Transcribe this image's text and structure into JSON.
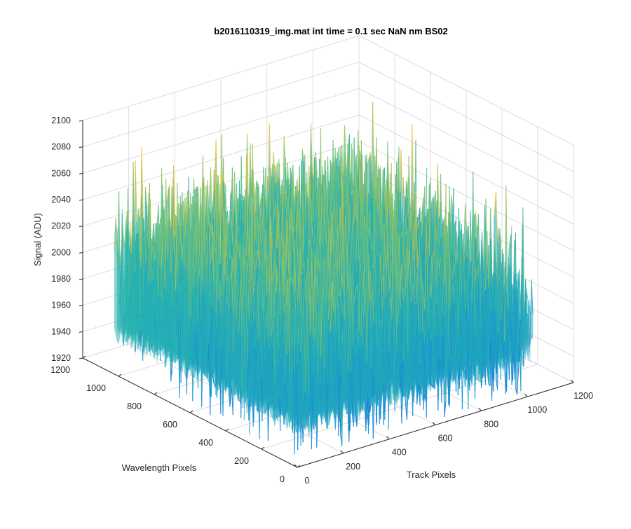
{
  "chart_data": {
    "type": "surface",
    "title": "b2016110319_img.mat int time = 0.1 sec  NaN nm BS02",
    "xlabel": "Track Pixels",
    "ylabel": "Wavelength Pixels",
    "zlabel": "Signal (ADU)",
    "x_ticks": [
      "0",
      "200",
      "400",
      "600",
      "800",
      "1000",
      "1200"
    ],
    "y_ticks": [
      "0",
      "200",
      "400",
      "600",
      "800",
      "1000",
      "1200"
    ],
    "z_ticks": [
      "1920",
      "1940",
      "1960",
      "1980",
      "2000",
      "2020",
      "2040",
      "2060",
      "2080",
      "2100"
    ],
    "xlim": [
      0,
      1200
    ],
    "ylim": [
      0,
      1200
    ],
    "zlim": [
      1920,
      2100
    ],
    "grid": true,
    "colormap": "parula",
    "colors": {
      "low": "#0a72d6",
      "mid": "#27b4b2",
      "high": "#f2c230"
    },
    "surface": {
      "track_extent": [
        0,
        1024
      ],
      "wavelength_extent": [
        0,
        1024
      ],
      "mean_signal": 1990,
      "noise_peak_to_peak": 140,
      "note_bias": "higher signal toward low track pixels and high wavelength pixels"
    }
  }
}
